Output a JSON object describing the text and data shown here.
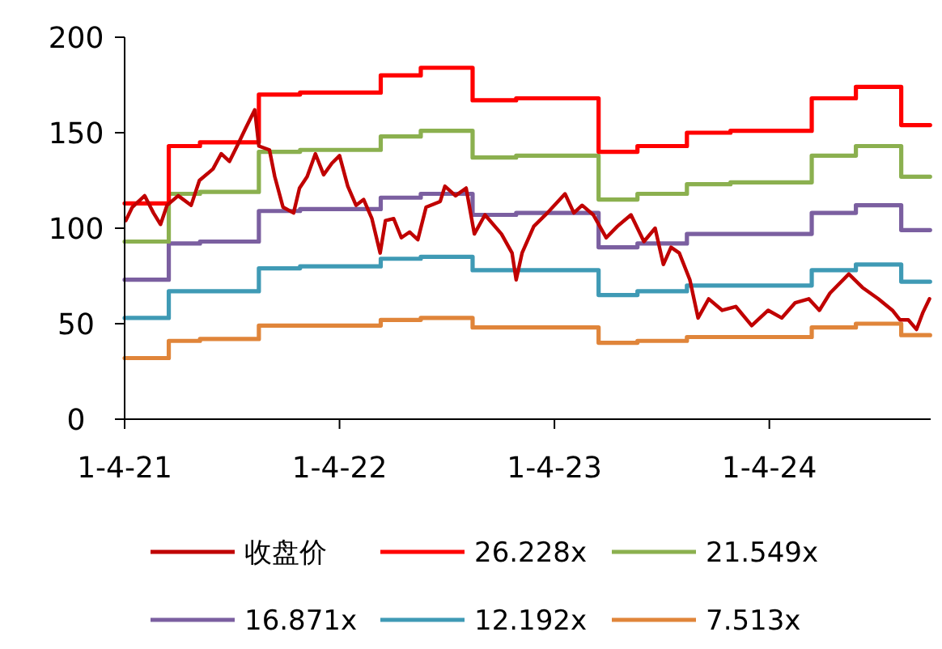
{
  "chart_data": {
    "type": "line",
    "xlim": [
      "2021-01-04",
      "2024-10-04"
    ],
    "xticks": [
      {
        "value": "2021-01-04",
        "label": "1-4-21"
      },
      {
        "value": "2022-01-04",
        "label": "1-4-22"
      },
      {
        "value": "2023-01-04",
        "label": "1-4-23"
      },
      {
        "value": "2024-01-04",
        "label": "1-4-24"
      }
    ],
    "ylim": [
      0,
      200
    ],
    "yticks": [
      0,
      50,
      100,
      150,
      200
    ],
    "grid": false,
    "legend": "bottom",
    "line_style": "solid",
    "marker": "none",
    "series": [
      {
        "name": "收盘价",
        "color": "#c00000",
        "x": [
          "2021-01-06",
          "2021-01-17",
          "2021-02-07",
          "2021-02-22",
          "2021-03-06",
          "2021-03-17",
          "2021-04-05",
          "2021-04-27",
          "2021-05-11",
          "2021-06-03",
          "2021-06-17",
          "2021-07-01",
          "2021-07-14",
          "2021-07-28",
          "2021-08-13",
          "2021-08-20",
          "2021-09-07",
          "2021-09-16",
          "2021-09-30",
          "2021-10-18",
          "2021-10-28",
          "2021-11-10",
          "2021-11-24",
          "2021-12-08",
          "2021-12-22",
          "2022-01-04",
          "2022-01-18",
          "2022-02-01",
          "2022-02-14",
          "2022-02-28",
          "2022-03-14",
          "2022-03-23",
          "2022-04-06",
          "2022-04-19",
          "2022-05-03",
          "2022-05-17",
          "2022-05-31",
          "2022-06-24",
          "2022-07-02",
          "2022-07-20",
          "2022-08-07",
          "2022-08-21",
          "2022-09-08",
          "2022-10-06",
          "2022-10-24",
          "2022-10-31",
          "2022-11-10",
          "2022-11-30",
          "2022-12-23",
          "2023-01-22",
          "2023-02-06",
          "2023-02-20",
          "2023-03-11",
          "2023-04-02",
          "2023-04-21",
          "2023-05-14",
          "2023-06-05",
          "2023-06-24",
          "2023-07-08",
          "2023-07-21",
          "2023-08-04",
          "2023-08-22",
          "2023-09-05",
          "2023-09-23",
          "2023-10-16",
          "2023-11-08",
          "2023-12-05",
          "2024-01-02",
          "2024-01-25",
          "2024-02-17",
          "2024-03-11",
          "2024-03-29",
          "2024-04-16",
          "2024-05-18",
          "2024-06-10",
          "2024-07-07",
          "2024-07-31",
          "2024-08-13",
          "2024-08-27",
          "2024-09-10",
          "2024-09-21",
          "2024-10-02"
        ],
        "values": [
          104,
          111,
          117,
          108,
          102,
          112,
          117,
          112,
          125,
          131,
          139,
          135,
          143,
          152,
          162,
          143,
          141,
          127,
          111,
          108,
          121,
          127,
          139,
          128,
          134,
          138,
          122,
          112,
          115,
          105,
          87,
          104,
          105,
          95,
          98,
          94,
          111,
          114,
          122,
          117,
          121,
          97,
          107,
          97,
          87,
          73,
          87,
          101,
          108,
          118,
          108,
          112,
          107,
          95,
          101,
          107,
          93,
          100,
          81,
          90,
          87,
          73,
          53,
          63,
          57,
          59,
          49,
          57,
          53,
          61,
          63,
          57,
          66,
          76,
          69,
          63,
          57,
          52,
          52,
          47,
          56,
          63
        ]
      },
      {
        "name": "26.228x",
        "color": "#ff0000",
        "type": "step",
        "values": [
          113,
          143,
          145,
          170,
          171,
          180,
          184,
          167,
          168,
          140,
          143,
          150,
          151,
          168,
          174,
          154,
          154
        ]
      },
      {
        "name": "21.549x",
        "color": "#8bb04f",
        "type": "step",
        "values": [
          93,
          118,
          119,
          140,
          141,
          148,
          151,
          137,
          138,
          115,
          118,
          123,
          124,
          138,
          143,
          127,
          127
        ]
      },
      {
        "name": "16.871x",
        "color": "#7b5fa0",
        "type": "step",
        "values": [
          73,
          92,
          93,
          109,
          110,
          116,
          118,
          107,
          108,
          90,
          92,
          97,
          97,
          108,
          112,
          99,
          99
        ]
      },
      {
        "name": "12.192x",
        "color": "#3f9ab5",
        "type": "step",
        "values": [
          53,
          67,
          67,
          79,
          80,
          84,
          85,
          78,
          78,
          65,
          67,
          70,
          70,
          78,
          81,
          72,
          72
        ]
      },
      {
        "name": "7.513x",
        "color": "#e0853a",
        "type": "step",
        "values": [
          32,
          41,
          42,
          49,
          49,
          52,
          53,
          48,
          48,
          40,
          41,
          43,
          43,
          48,
          50,
          44,
          44
        ]
      }
    ],
    "x": [
      "2021-01-04",
      "2021-03-20",
      "2021-05-12",
      "2021-08-20",
      "2021-10-29",
      "2022-03-15",
      "2022-05-22",
      "2022-08-18",
      "2022-10-31",
      "2023-03-20",
      "2023-05-25",
      "2023-08-17",
      "2023-10-30",
      "2024-03-16",
      "2024-05-30",
      "2024-08-15",
      "2024-10-03"
    ]
  }
}
